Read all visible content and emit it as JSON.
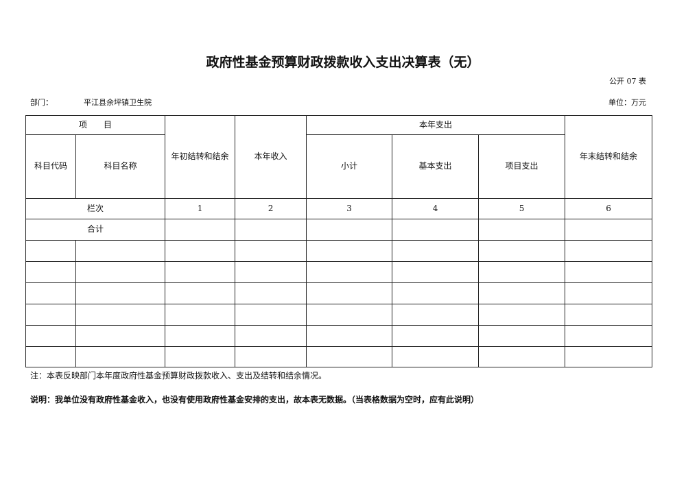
{
  "title": "政府性基金预算财政拨款收入支出决算表（无）",
  "form_no": "公开 07 表",
  "department_label": "部门：",
  "department_value": "平江县余坪镇卫生院",
  "unit": "单位：万元",
  "table": {
    "header_item": "项　　目",
    "header_code": "科目代码",
    "header_name": "科目名称",
    "header_opening": "年初结转和结余",
    "header_income": "本年收入",
    "header_expense": "本年支出",
    "header_subtotal": "小计",
    "header_basic": "基本支出",
    "header_project": "项目支出",
    "header_closing": "年末结转和结余",
    "column_index_label": "栏次",
    "column_index": [
      "1",
      "2",
      "3",
      "4",
      "5",
      "6"
    ],
    "total_label": "合计"
  },
  "note": "注：本表反映部门本年度政府性基金预算财政拨款收入、支出及结转和结余情况。",
  "explanation": "说明：我单位没有政府性基金收入，也没有使用政府性基金安排的支出，故本表无数据。（当表格数据为空时，应有此说明）"
}
